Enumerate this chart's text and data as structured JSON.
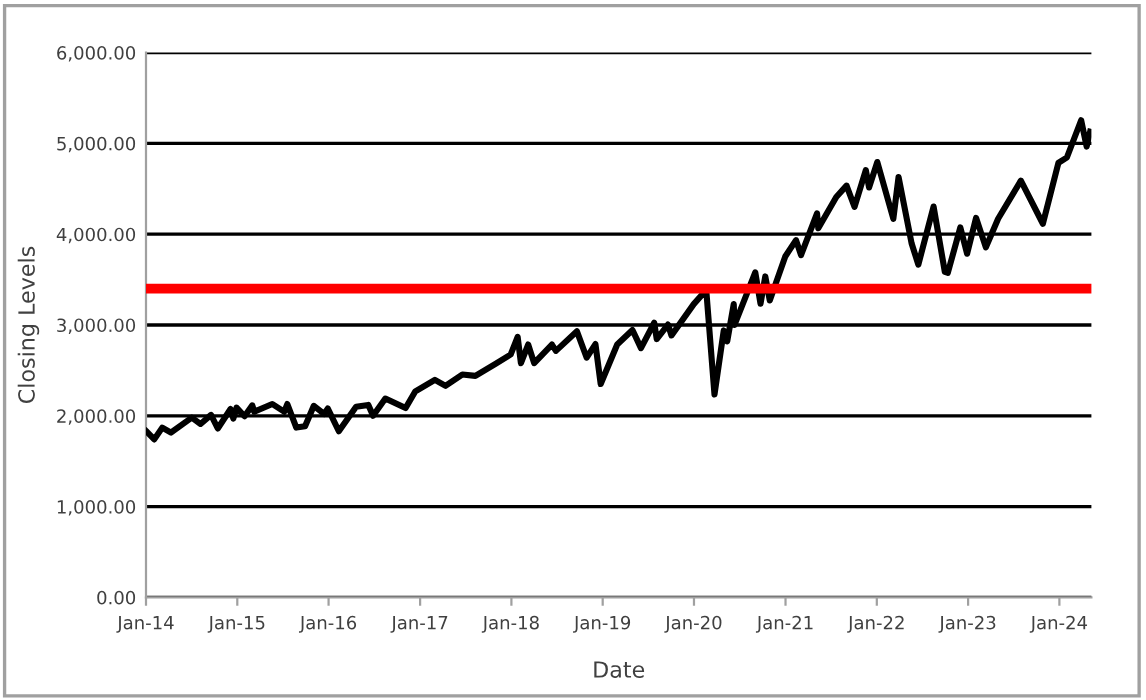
{
  "chart_data": {
    "type": "line",
    "xlabel": "Date",
    "ylabel": "Closing Levels",
    "xlim": [
      "2014-01-01",
      "2024-05-08"
    ],
    "ylim": [
      0,
      6000
    ],
    "xticks": [
      {
        "value": "2014-01-01",
        "label": "Jan-14"
      },
      {
        "value": "2015-01-01",
        "label": "Jan-15"
      },
      {
        "value": "2016-01-01",
        "label": "Jan-16"
      },
      {
        "value": "2017-01-01",
        "label": "Jan-17"
      },
      {
        "value": "2018-01-01",
        "label": "Jan-18"
      },
      {
        "value": "2019-01-01",
        "label": "Jan-19"
      },
      {
        "value": "2020-01-01",
        "label": "Jan-20"
      },
      {
        "value": "2021-01-01",
        "label": "Jan-21"
      },
      {
        "value": "2022-01-01",
        "label": "Jan-22"
      },
      {
        "value": "2023-01-01",
        "label": "Jan-23"
      },
      {
        "value": "2024-01-01",
        "label": "Jan-24"
      }
    ],
    "yticks": [
      {
        "value": 0,
        "label": "0.00"
      },
      {
        "value": 1000,
        "label": "1,000.00"
      },
      {
        "value": 2000,
        "label": "2,000.00"
      },
      {
        "value": 3000,
        "label": "3,000.00"
      },
      {
        "value": 4000,
        "label": "4,000.00"
      },
      {
        "value": 5000,
        "label": "5,000.00"
      },
      {
        "value": 6000,
        "label": "6,000.00"
      }
    ],
    "grid": "y",
    "marker": "none",
    "line_style": "solid",
    "ref_lines": [
      {
        "axis": "y",
        "value": 3400,
        "label": null,
        "color": "#ff0000"
      }
    ],
    "series": [
      {
        "color": "#000000",
        "x": [
          "2014-01-02",
          "2014-02-03",
          "2014-03-07",
          "2014-04-11",
          "2014-07-03",
          "2014-08-07",
          "2014-09-18",
          "2014-10-15",
          "2014-12-05",
          "2014-12-16",
          "2014-12-29",
          "2015-01-30",
          "2015-03-02",
          "2015-03-10",
          "2015-05-21",
          "2015-07-08",
          "2015-07-20",
          "2015-08-25",
          "2015-09-29",
          "2015-11-03",
          "2015-12-14",
          "2015-12-29",
          "2016-02-11",
          "2016-04-20",
          "2016-06-08",
          "2016-06-27",
          "2016-08-15",
          "2016-11-04",
          "2016-12-13",
          "2017-03-01",
          "2017-04-13",
          "2017-06-19",
          "2017-08-10",
          "2017-10-31",
          "2017-12-29",
          "2018-01-26",
          "2018-02-08",
          "2018-03-09",
          "2018-04-02",
          "2018-06-12",
          "2018-06-28",
          "2018-09-20",
          "2018-10-29",
          "2018-12-03",
          "2018-12-24",
          "2019-02-28",
          "2019-04-30",
          "2019-06-03",
          "2019-07-26",
          "2019-08-05",
          "2019-09-19",
          "2019-10-03",
          "2019-12-31",
          "2020-02-19",
          "2020-03-23",
          "2020-04-29",
          "2020-05-13",
          "2020-06-08",
          "2020-06-11",
          "2020-09-02",
          "2020-09-23",
          "2020-10-12",
          "2020-10-30",
          "2020-12-31",
          "2021-02-12",
          "2021-03-04",
          "2021-05-07",
          "2021-05-12",
          "2021-07-23",
          "2021-09-02",
          "2021-10-04",
          "2021-11-18",
          "2021-12-01",
          "2022-01-03",
          "2022-03-08",
          "2022-03-29",
          "2022-05-20",
          "2022-06-16",
          "2022-08-16",
          "2022-09-30",
          "2022-10-12",
          "2022-12-01",
          "2022-12-28",
          "2023-02-02",
          "2023-03-13",
          "2023-05-01",
          "2023-07-31",
          "2023-10-27",
          "2023-12-28",
          "2024-01-31",
          "2024-03-28",
          "2024-04-19",
          "2024-05-03"
        ],
        "values": [
          1830,
          1740,
          1870,
          1815,
          1980,
          1910,
          2010,
          1860,
          2075,
          1970,
          2090,
          1995,
          2115,
          2045,
          2130,
          2045,
          2130,
          1870,
          1885,
          2110,
          2020,
          2080,
          1830,
          2100,
          2120,
          2000,
          2190,
          2085,
          2270,
          2395,
          2330,
          2455,
          2440,
          2575,
          2675,
          2870,
          2580,
          2785,
          2580,
          2785,
          2715,
          2930,
          2640,
          2790,
          2350,
          2785,
          2945,
          2745,
          3025,
          2845,
          3005,
          2885,
          3230,
          3385,
          2235,
          2940,
          2820,
          3230,
          3000,
          3580,
          3235,
          3535,
          3270,
          3755,
          3935,
          3770,
          4230,
          4065,
          4410,
          4535,
          4300,
          4705,
          4515,
          4795,
          4170,
          4630,
          3900,
          3665,
          4305,
          3585,
          3575,
          4075,
          3785,
          4180,
          3855,
          4170,
          4590,
          4115,
          4785,
          4845,
          5255,
          4965,
          5130
        ]
      }
    ]
  }
}
